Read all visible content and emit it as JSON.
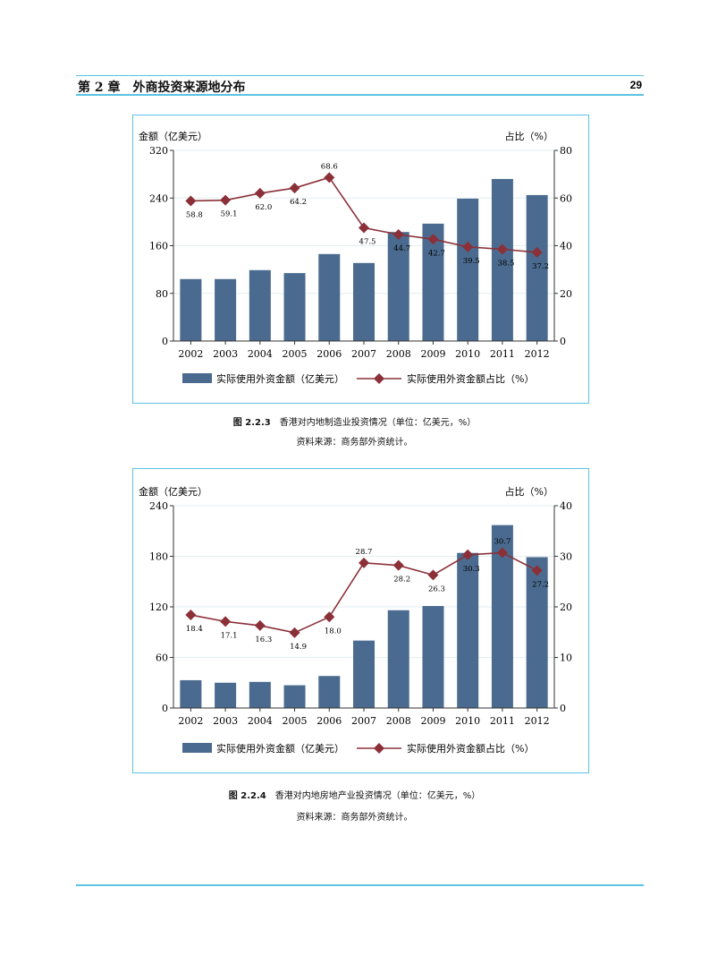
{
  "header": {
    "chapter": "第 2 章　外商投资来源地分布",
    "page": "29"
  },
  "figures": [
    {
      "caption_num": "图 2.2.3",
      "caption": "香港对内地制造业投资情况（单位：亿美元，%）",
      "source": "资料来源：商务部外资统计。"
    },
    {
      "caption_num": "图 2.2.4",
      "caption": "香港对内地房地产业投资情况（单位：亿美元，%）",
      "source": "资料来源：商务部外资统计。"
    }
  ],
  "colors": {
    "bar": "#4a6b8f",
    "line": "#8b3038",
    "rule": "#5bc3e3"
  },
  "chart_data": [
    {
      "type": "bar+line",
      "categories": [
        "2002",
        "2003",
        "2004",
        "2005",
        "2006",
        "2007",
        "2008",
        "2009",
        "2010",
        "2011",
        "2012"
      ],
      "ylabel": "金额（亿美元）",
      "y2label": "占比（%）",
      "ylim": [
        0,
        320
      ],
      "yticks": [
        0,
        80,
        160,
        240,
        320
      ],
      "y2lim": [
        0,
        80
      ],
      "y2ticks": [
        0,
        20,
        40,
        60,
        80
      ],
      "series": [
        {
          "name": "实际使用外资金额（亿美元）",
          "axis": "left",
          "values": [
            104,
            104,
            119,
            114,
            146,
            131,
            183,
            197,
            239,
            272,
            245
          ]
        },
        {
          "name": "实际使用外资金额占比（%）",
          "axis": "right",
          "values": [
            58.8,
            59.1,
            62.0,
            64.2,
            68.6,
            47.5,
            44.7,
            42.7,
            39.5,
            38.5,
            37.2
          ],
          "labels": [
            "58.8",
            "59.1",
            "62.0",
            "64.2",
            "68.6",
            "47.5",
            "44.7",
            "42.7",
            "39.5",
            "38.5",
            "37.2"
          ]
        }
      ]
    },
    {
      "type": "bar+line",
      "categories": [
        "2002",
        "2003",
        "2004",
        "2005",
        "2006",
        "2007",
        "2008",
        "2009",
        "2010",
        "2011",
        "2012"
      ],
      "ylabel": "金额（亿美元）",
      "y2label": "占比（%）",
      "ylim": [
        0,
        240
      ],
      "yticks": [
        0,
        60,
        120,
        180,
        240
      ],
      "y2lim": [
        0,
        40
      ],
      "y2ticks": [
        0,
        10,
        20,
        30,
        40
      ],
      "series": [
        {
          "name": "实际使用外资金额（亿美元）",
          "axis": "left",
          "values": [
            33,
            30,
            31,
            27,
            38,
            80,
            116,
            121,
            184,
            217,
            179
          ]
        },
        {
          "name": "实际使用外资金额占比（%）",
          "axis": "right",
          "values": [
            18.4,
            17.1,
            16.3,
            14.9,
            18.0,
            28.7,
            28.2,
            26.3,
            30.3,
            30.7,
            27.2
          ],
          "labels": [
            "18.4",
            "17.1",
            "16.3",
            "14.9",
            "18.0",
            "28.7",
            "28.2",
            "26.3",
            "30.3",
            "30.7",
            "27.2"
          ]
        }
      ]
    }
  ]
}
